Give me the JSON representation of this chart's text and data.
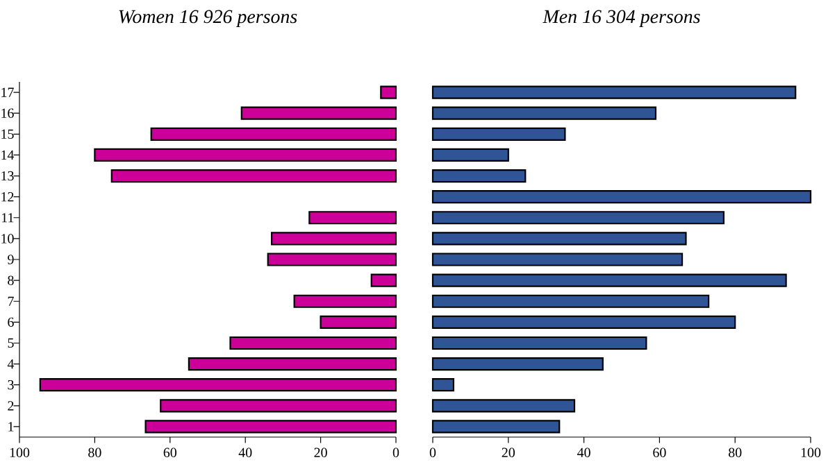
{
  "chart_data": [
    {
      "type": "bar",
      "orientation": "horizontal",
      "title": "*Women 16 926 persons*",
      "categories": [
        "17",
        "16",
        "15",
        "14",
        "13",
        "12",
        "11",
        "10",
        "9",
        "8",
        "7",
        "6",
        "5",
        "4",
        "3",
        "2",
        "1"
      ],
      "values": [
        4,
        41,
        65,
        80,
        75.5,
        null,
        23,
        33,
        34,
        6.5,
        27,
        20,
        44,
        55,
        94.5,
        62.5,
        66.5
      ],
      "color": "#cc0099",
      "xlim": [
        100,
        0
      ],
      "xticks": [
        100,
        80,
        60,
        40,
        20,
        0
      ]
    },
    {
      "type": "bar",
      "orientation": "horizontal",
      "title": "*Men 16 304 persons*",
      "categories": [
        "17",
        "16",
        "15",
        "14",
        "13",
        "12",
        "11",
        "10",
        "9",
        "8",
        "7",
        "6",
        "5",
        "4",
        "3",
        "2",
        "1"
      ],
      "values": [
        96,
        59,
        35,
        20,
        24.5,
        100,
        77,
        67,
        66,
        93.5,
        73,
        80,
        56.5,
        45,
        5.5,
        37.5,
        33.5
      ],
      "color": "#2f5597",
      "xlim": [
        0,
        100
      ],
      "xticks": [
        0,
        20,
        40,
        60,
        80,
        100
      ],
      "tick_labels": "x"
    }
  ]
}
